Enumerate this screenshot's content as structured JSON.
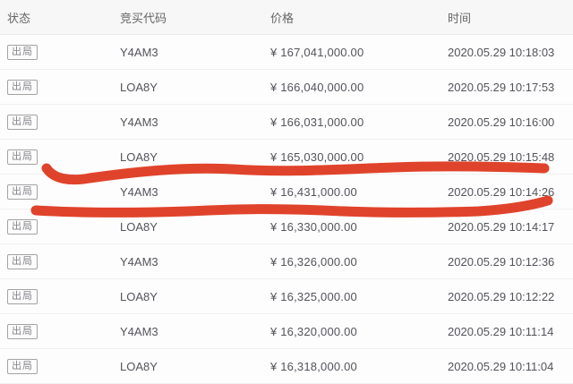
{
  "table": {
    "columns": {
      "status": "状态",
      "code": "竞买代码",
      "price": "价格",
      "time": "时间"
    },
    "rows": [
      {
        "status": "出局",
        "code": "Y4AM3",
        "price": "¥ 167,041,000.00",
        "time": "2020.05.29 10:18:03"
      },
      {
        "status": "出局",
        "code": "LOA8Y",
        "price": "¥ 166,040,000.00",
        "time": "2020.05.29 10:17:53"
      },
      {
        "status": "出局",
        "code": "Y4AM3",
        "price": "¥ 166,031,000.00",
        "time": "2020.05.29 10:16:00"
      },
      {
        "status": "出局",
        "code": "LOA8Y",
        "price": "¥ 165,030,000.00",
        "time": "2020.05.29 10:15:48"
      },
      {
        "status": "出局",
        "code": "Y4AM3",
        "price": "¥ 16,431,000.00",
        "time": "2020.05.29 10:14:26"
      },
      {
        "status": "出局",
        "code": "LOA8Y",
        "price": "¥ 16,330,000.00",
        "time": "2020.05.29 10:14:17"
      },
      {
        "status": "出局",
        "code": "Y4AM3",
        "price": "¥ 16,326,000.00",
        "time": "2020.05.29 10:12:36"
      },
      {
        "status": "出局",
        "code": "LOA8Y",
        "price": "¥ 16,325,000.00",
        "time": "2020.05.29 10:12:22"
      },
      {
        "status": "出局",
        "code": "Y4AM3",
        "price": "¥ 16,320,000.00",
        "time": "2020.05.29 10:11:14"
      },
      {
        "status": "出局",
        "code": "LOA8Y",
        "price": "¥ 16,318,000.00",
        "time": "2020.05.29 10:11:04"
      }
    ]
  },
  "annotation": {
    "type": "hand-drawn-red-marker",
    "color": "#df3a20",
    "highlighted_row_index": 4,
    "stroke_width": 11,
    "strokes": [
      "M52 188 C60 200, 78 203, 100 199 C150 192, 205 186, 260 189 C320 193, 380 189, 440 187 C490 185, 555 186, 608 188",
      "M40 235 C90 238, 150 238, 210 236 C270 233, 310 233, 360 235 C420 238, 480 238, 535 236 C565 234, 592 230, 612 224"
    ]
  }
}
